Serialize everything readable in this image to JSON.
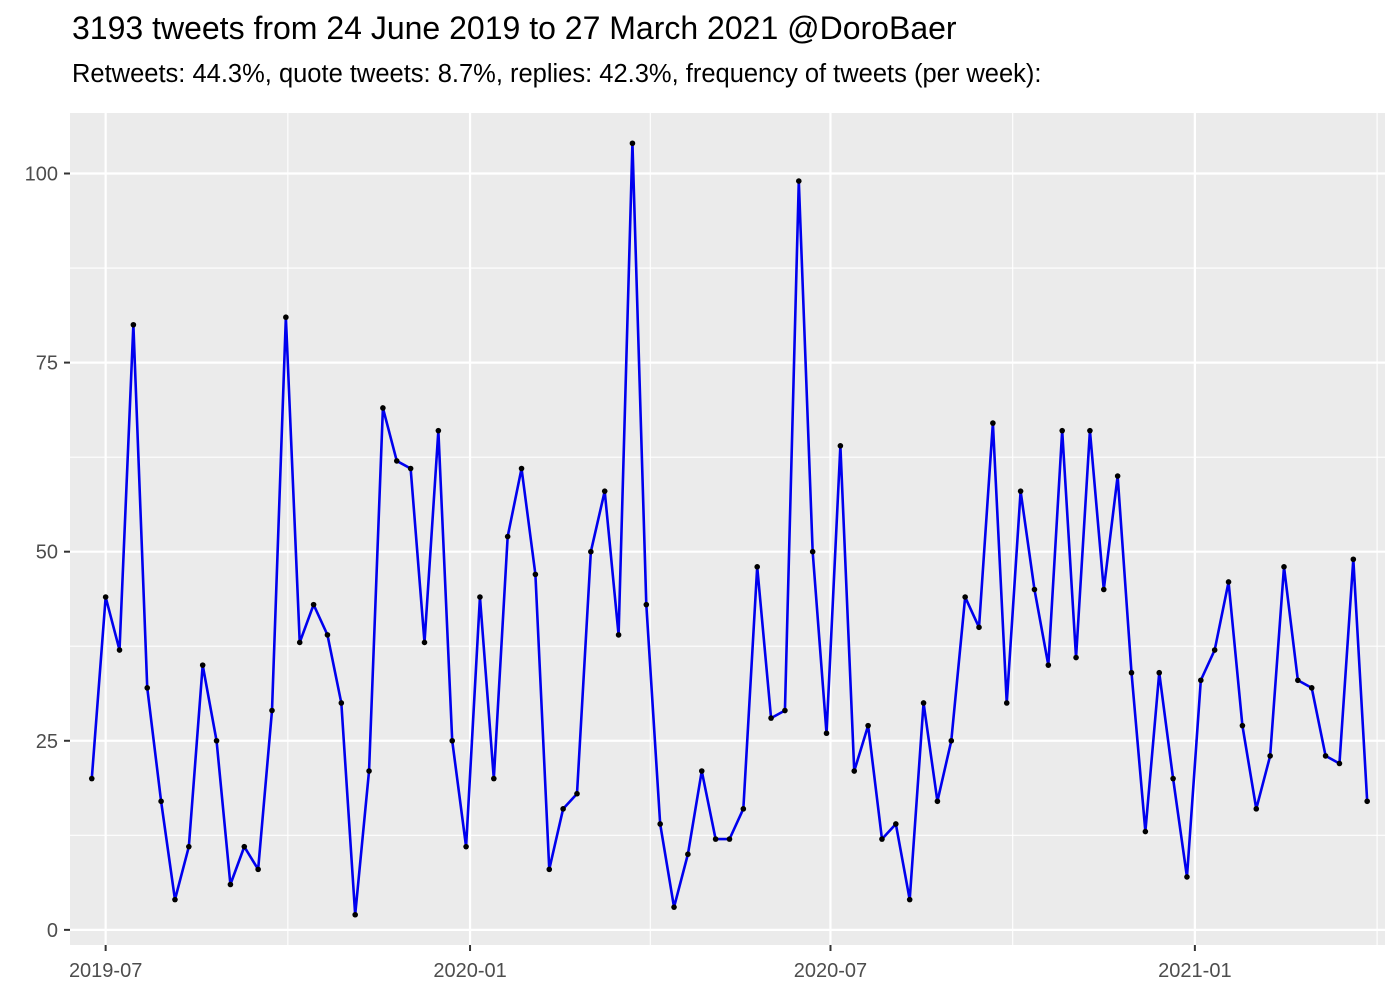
{
  "chart_data": {
    "type": "line",
    "title": "3193 tweets from 24 June 2019 to 27 March 2021 @DoroBaer",
    "subtitle": "Retweets: 44.3%, quote tweets: 8.7%, replies: 42.3%, frequency of tweets (per week):",
    "xlabel": "",
    "ylabel": "",
    "x_start": "2019-06-24",
    "x_step_days": 7,
    "xlim": [
      "2019-06-13",
      "2021-04-07"
    ],
    "ylim": [
      -2,
      108
    ],
    "x_ticks": [
      {
        "date": "2019-07-01",
        "label": "2019-07"
      },
      {
        "date": "2020-01-01",
        "label": "2020-01"
      },
      {
        "date": "2020-07-01",
        "label": "2020-07"
      },
      {
        "date": "2021-01-01",
        "label": "2021-01"
      }
    ],
    "y_ticks": [
      0,
      25,
      50,
      75,
      100
    ],
    "grid": true,
    "line_color": "#0000ee",
    "point_color": "#000000",
    "panel_color": "#ebebeb",
    "values": [
      20,
      44,
      37,
      80,
      32,
      17,
      4,
      11,
      35,
      25,
      6,
      11,
      8,
      29,
      81,
      38,
      43,
      39,
      30,
      2,
      21,
      69,
      62,
      61,
      38,
      66,
      25,
      11,
      44,
      20,
      52,
      61,
      47,
      8,
      16,
      18,
      50,
      58,
      39,
      104,
      43,
      14,
      3,
      10,
      21,
      12,
      12,
      16,
      48,
      28,
      29,
      99,
      50,
      26,
      64,
      21,
      27,
      12,
      14,
      4,
      30,
      17,
      25,
      44,
      40,
      67,
      30,
      58,
      45,
      35,
      66,
      36,
      66,
      45,
      60,
      34,
      13,
      34,
      20,
      7,
      33,
      37,
      46,
      27,
      16,
      23,
      48,
      33,
      32,
      23,
      22,
      49,
      17
    ]
  }
}
